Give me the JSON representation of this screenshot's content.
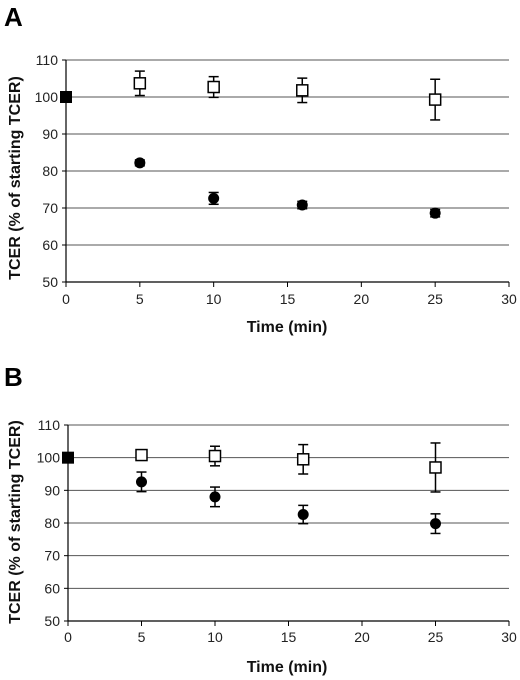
{
  "chart_data": [
    {
      "type": "scatter",
      "panel_label": "A",
      "xlabel": "Time (min)",
      "ylabel": "TCER (% of starting TCER)",
      "xlim": [
        0,
        30
      ],
      "ylim": [
        50,
        110
      ],
      "x_ticks": [
        0,
        5,
        10,
        15,
        20,
        25,
        30
      ],
      "y_ticks": [
        50,
        60,
        70,
        80,
        90,
        100,
        110
      ],
      "grid": "horizontal",
      "series": [
        {
          "marker": "open-square",
          "color": "#000000",
          "points": [
            {
              "x": 0,
              "y": 100,
              "err": 0,
              "marker": "filled-square"
            },
            {
              "x": 5,
              "y": 103.7,
              "err": 3.3
            },
            {
              "x": 10,
              "y": 102.7,
              "err": 2.8
            },
            {
              "x": 16,
              "y": 101.8,
              "err": 3.3
            },
            {
              "x": 25,
              "y": 99.3,
              "err": 5.5
            }
          ]
        },
        {
          "marker": "filled-circle",
          "color": "#000000",
          "points": [
            {
              "x": 5,
              "y": 82.2,
              "err": 0.8
            },
            {
              "x": 10,
              "y": 72.6,
              "err": 1.6
            },
            {
              "x": 16,
              "y": 70.8,
              "err": 1.0
            },
            {
              "x": 25,
              "y": 68.6,
              "err": 1.0
            }
          ]
        }
      ]
    },
    {
      "type": "scatter",
      "panel_label": "B",
      "xlabel": "Time (min)",
      "ylabel": "TCER (% of starting TCER)",
      "xlim": [
        0,
        30
      ],
      "ylim": [
        50,
        110
      ],
      "x_ticks": [
        0,
        5,
        10,
        15,
        20,
        25,
        30
      ],
      "y_ticks": [
        50,
        60,
        70,
        80,
        90,
        100,
        110
      ],
      "grid": "horizontal",
      "series": [
        {
          "marker": "open-square",
          "color": "#000000",
          "points": [
            {
              "x": 0,
              "y": 100,
              "err": 0,
              "marker": "filled-square"
            },
            {
              "x": 5,
              "y": 100.8,
              "err": 1.0
            },
            {
              "x": 10,
              "y": 100.5,
              "err": 3.0
            },
            {
              "x": 16,
              "y": 99.5,
              "err": 4.5
            },
            {
              "x": 25,
              "y": 97.0,
              "err": 7.5
            }
          ]
        },
        {
          "marker": "filled-circle",
          "color": "#000000",
          "points": [
            {
              "x": 5,
              "y": 92.6,
              "err": 3.0
            },
            {
              "x": 10,
              "y": 88.0,
              "err": 3.0
            },
            {
              "x": 16,
              "y": 82.6,
              "err": 2.8
            },
            {
              "x": 25,
              "y": 79.8,
              "err": 3.0
            }
          ]
        }
      ]
    }
  ]
}
